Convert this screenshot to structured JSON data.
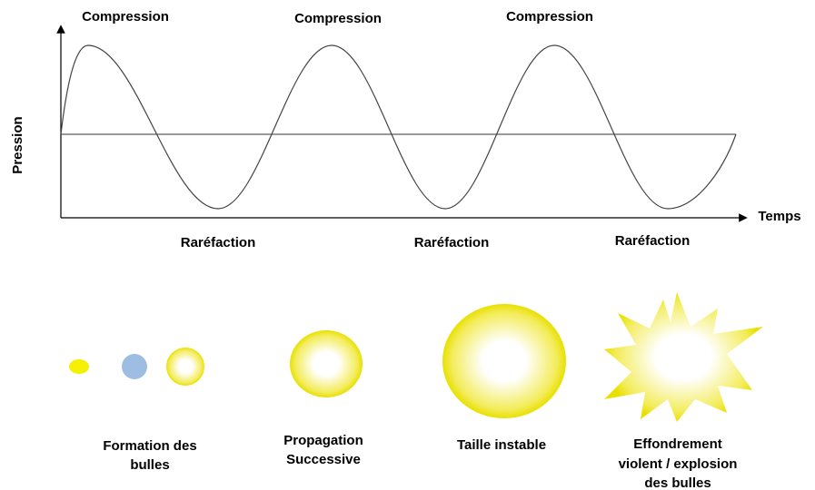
{
  "axes": {
    "y_label": "Pression",
    "x_label": "Temps"
  },
  "wave_labels": {
    "top": [
      "Compression",
      "Compression",
      "Compression"
    ],
    "bottom": [
      "Raréfaction",
      "Raréfaction",
      "Raréfaction"
    ]
  },
  "stages": [
    {
      "label_lines": [
        "Formation des",
        "bulles"
      ]
    },
    {
      "label_lines": [
        "Propagation",
        "Successive"
      ]
    },
    {
      "label_lines": [
        "Taille instable"
      ]
    },
    {
      "label_lines": [
        "Effondrement",
        "violent / explosion",
        "des bulles"
      ]
    }
  ]
}
